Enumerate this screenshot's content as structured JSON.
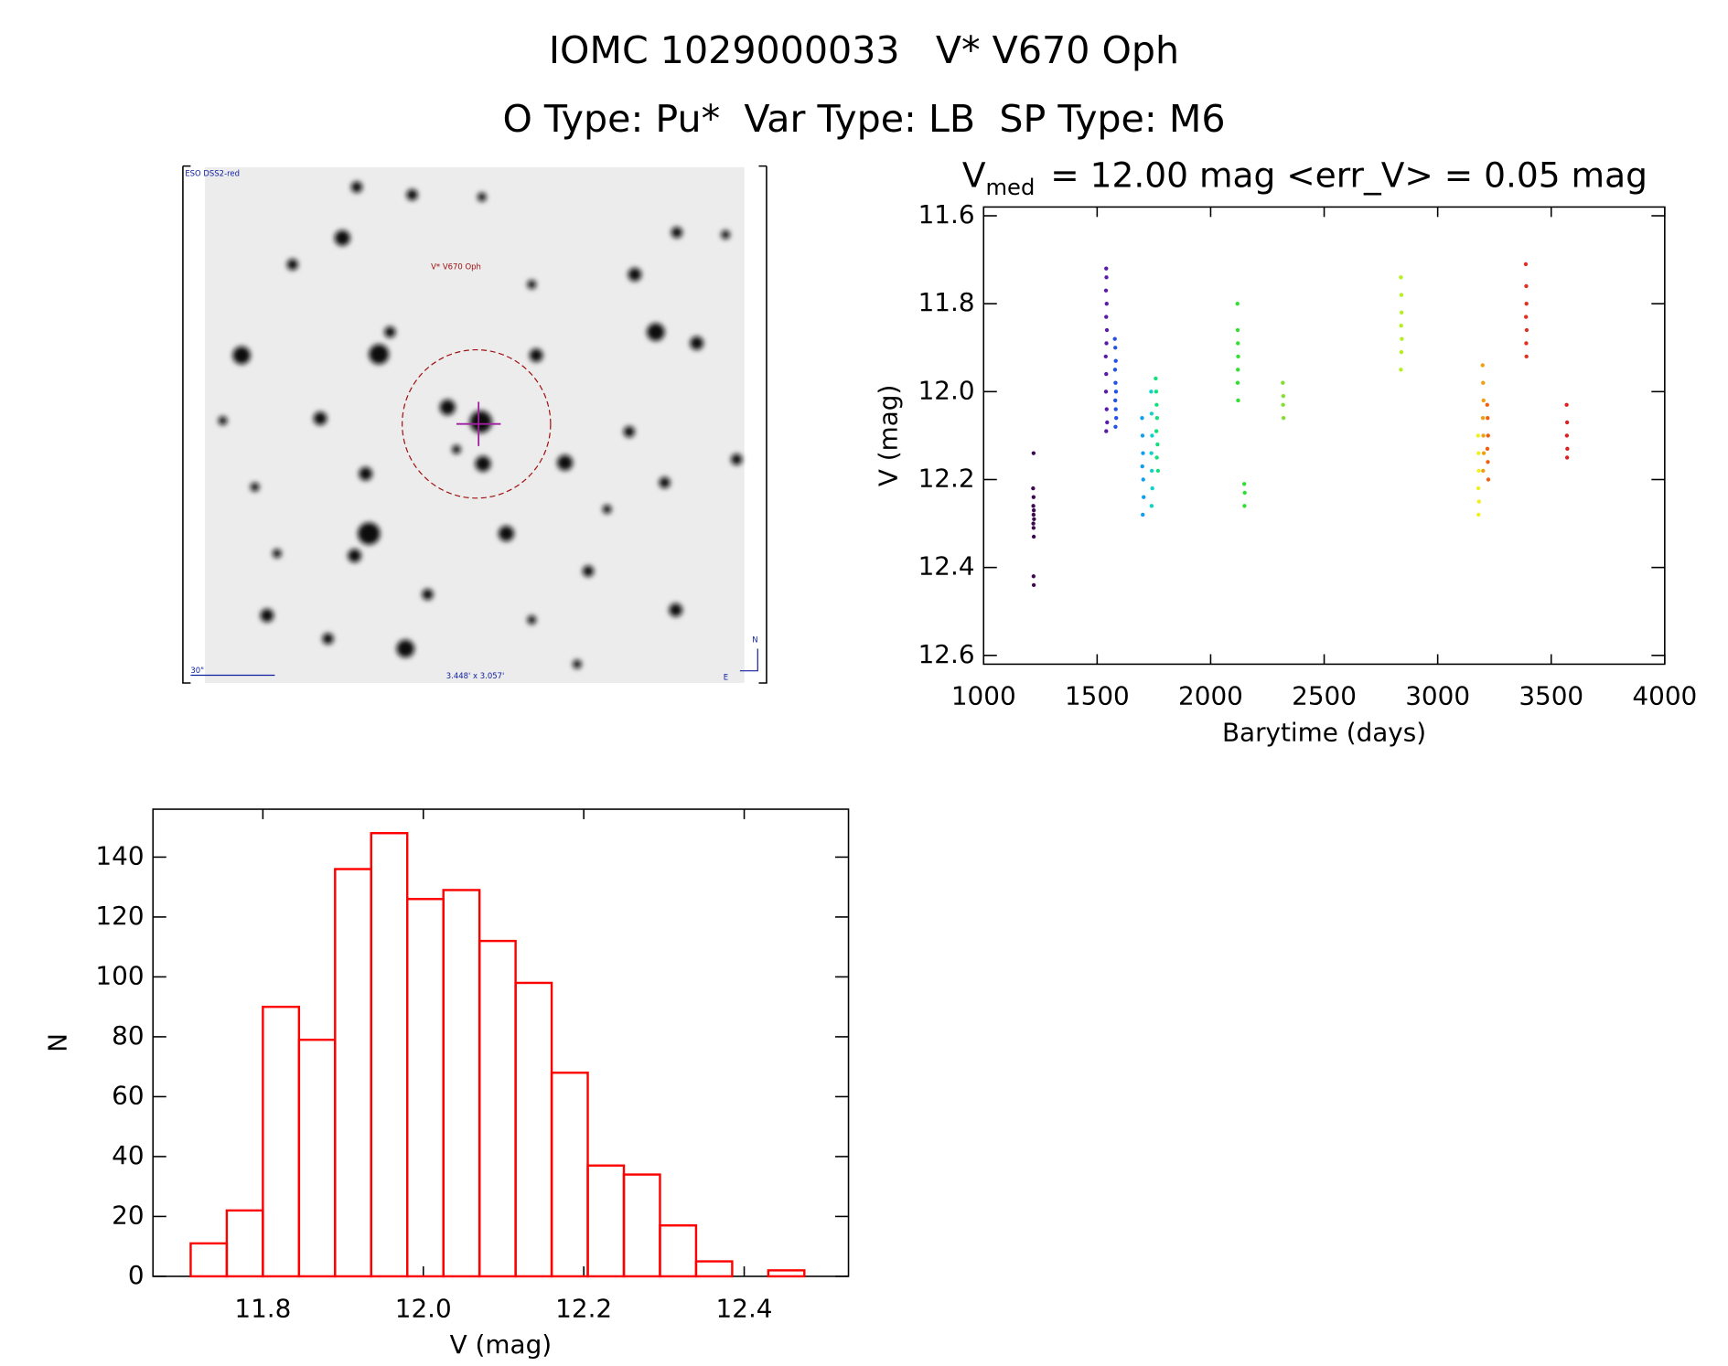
{
  "title": "IOMC 1029000033   V* V670 Oph",
  "subtitle": "O Type: Pu*  Var Type: LB  SP Type: M6",
  "image": {
    "survey": "ESO DSS2-red",
    "target": "V* V670 Oph",
    "scale": "30\"",
    "size": "3.448' x 3.057'",
    "north": "N",
    "east": "E"
  },
  "chart_data": [
    {
      "type": "scatter",
      "title": "V",
      "title_subscript": "med",
      "title_rest": "= 12.00 mag <err_V> = 0.05 mag",
      "x_label": "Barytime (days)",
      "y_label": "V (mag)",
      "xlim": [
        1000,
        4000
      ],
      "xticks": [
        1000,
        1500,
        2000,
        2500,
        3000,
        3500,
        4000
      ],
      "ylim": [
        12.62,
        11.58
      ],
      "yticks": [
        11.6,
        11.8,
        {
          "value": 12,
          "label": "12.0"
        },
        12.2,
        12.4,
        12.6
      ],
      "series": [
        {
          "color": "#3c0b4e",
          "x": [
            1218,
            1220,
            1219,
            1221,
            1220,
            1222,
            1219,
            1220,
            1221,
            1220,
            1220,
            1221
          ],
          "y": [
            12.22,
            12.24,
            12.26,
            12.27,
            12.28,
            12.29,
            12.3,
            12.31,
            12.33,
            12.14,
            12.42,
            12.44
          ]
        },
        {
          "color": "#5a1ca8",
          "x": [
            1540,
            1541,
            1539,
            1542,
            1540,
            1543,
            1541,
            1538,
            1540,
            1539,
            1542,
            1544,
            1540
          ],
          "y": [
            11.72,
            11.74,
            11.77,
            11.8,
            11.83,
            11.86,
            11.89,
            11.92,
            11.96,
            12.0,
            12.04,
            12.07,
            12.09
          ]
        },
        {
          "color": "#2452e6",
          "x": [
            1578,
            1580,
            1582,
            1579,
            1581,
            1583,
            1580,
            1582,
            1584,
            1581
          ],
          "y": [
            11.88,
            11.9,
            11.93,
            11.95,
            11.98,
            12.0,
            12.02,
            12.04,
            12.06,
            12.08
          ]
        },
        {
          "color": "#109ef0",
          "x": [
            1698,
            1700,
            1702,
            1699,
            1703,
            1705,
            1701
          ],
          "y": [
            12.06,
            12.1,
            12.14,
            12.17,
            12.2,
            12.24,
            12.28
          ]
        },
        {
          "color": "#10d2c8",
          "x": [
            1738,
            1740,
            1742,
            1739,
            1741,
            1743,
            1740
          ],
          "y": [
            12.0,
            12.05,
            12.1,
            12.14,
            12.18,
            12.22,
            12.26
          ]
        },
        {
          "color": "#12e07c",
          "x": [
            1758,
            1760,
            1762,
            1764,
            1761,
            1766,
            1763,
            1768
          ],
          "y": [
            11.97,
            12.0,
            12.03,
            12.06,
            12.09,
            12.12,
            12.15,
            12.18
          ]
        },
        {
          "color": "#30e030",
          "x": [
            2118,
            2119,
            2120,
            2121,
            2120,
            2119,
            2121,
            2148,
            2150,
            2149
          ],
          "y": [
            11.8,
            11.86,
            11.89,
            11.92,
            11.95,
            11.98,
            12.02,
            12.21,
            12.23,
            12.26
          ]
        },
        {
          "color": "#80e030",
          "x": [
            2318,
            2320,
            2319,
            2321
          ],
          "y": [
            11.98,
            12.01,
            12.03,
            12.06
          ]
        },
        {
          "color": "#b4f020",
          "x": [
            2838,
            2840,
            2841,
            2839,
            2842,
            2840,
            2838
          ],
          "y": [
            11.74,
            11.78,
            11.82,
            11.85,
            11.88,
            11.91,
            11.95
          ]
        },
        {
          "color": "#f0f020",
          "x": [
            3178,
            3180,
            3181,
            3179,
            3182,
            3180
          ],
          "y": [
            12.1,
            12.14,
            12.18,
            12.22,
            12.25,
            12.28
          ]
        },
        {
          "color": "#f0a010",
          "x": [
            3198,
            3200,
            3202,
            3199,
            3201,
            3203,
            3200
          ],
          "y": [
            11.94,
            11.98,
            12.02,
            12.06,
            12.1,
            12.14,
            12.18
          ]
        },
        {
          "color": "#f06010",
          "x": [
            3218,
            3220,
            3222,
            3219,
            3221,
            3223
          ],
          "y": [
            12.03,
            12.06,
            12.1,
            12.13,
            12.16,
            12.2
          ]
        },
        {
          "color": "#e03020",
          "x": [
            3388,
            3390,
            3391,
            3389,
            3392,
            3390,
            3391
          ],
          "y": [
            11.71,
            11.76,
            11.8,
            11.83,
            11.86,
            11.89,
            11.92
          ]
        },
        {
          "color": "#e02020",
          "x": [
            3568,
            3570,
            3569,
            3571,
            3570
          ],
          "y": [
            12.03,
            12.07,
            12.1,
            12.13,
            12.15
          ]
        }
      ]
    },
    {
      "type": "histogram",
      "x_label": "V (mag)",
      "y_label": "N",
      "color": "#ff0000",
      "bins": [
        11.71,
        11.755,
        11.8,
        11.845,
        11.89,
        11.935,
        11.98,
        12.025,
        12.07,
        12.115,
        12.16,
        12.205,
        12.25,
        12.295,
        12.34,
        12.385,
        12.43,
        12.475
      ],
      "values": [
        11,
        22,
        90,
        79,
        136,
        148,
        126,
        129,
        112,
        98,
        68,
        37,
        34,
        17,
        5,
        0,
        2
      ],
      "xlim": [
        11.663,
        12.53
      ],
      "xticks": [
        11.8,
        {
          "value": 12,
          "label": "12.0"
        },
        12.2,
        12.4
      ],
      "ylim": [
        0,
        156
      ],
      "yticks": [
        0,
        20,
        40,
        60,
        80,
        100,
        120,
        140
      ]
    }
  ]
}
